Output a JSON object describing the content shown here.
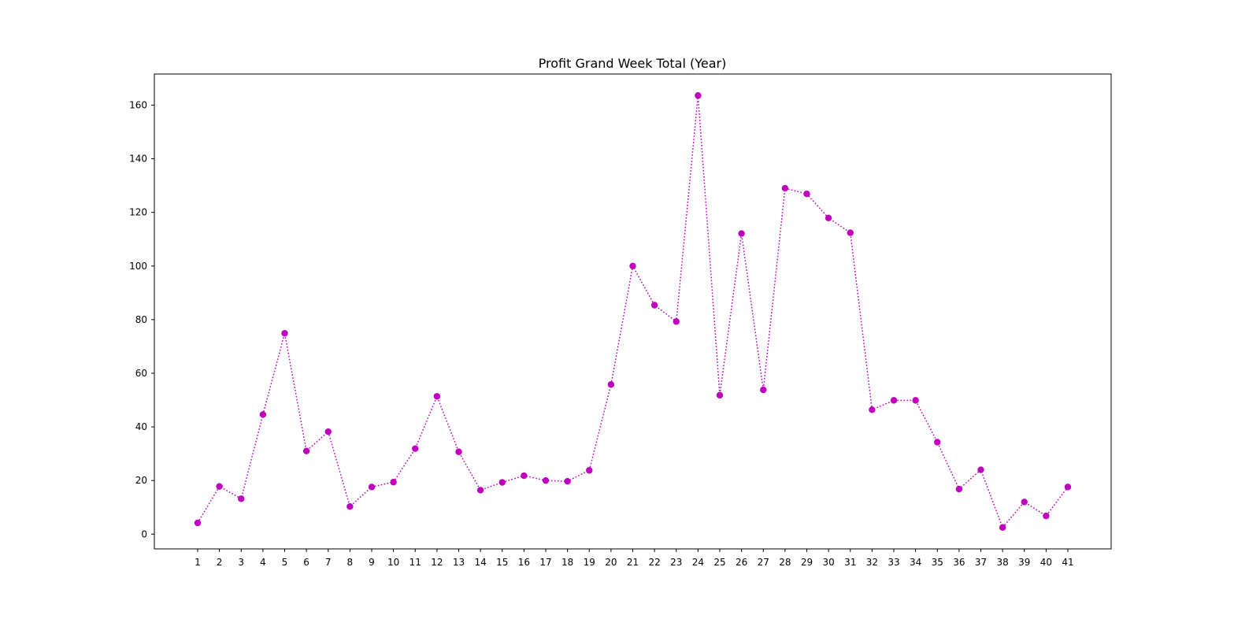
{
  "chart_data": {
    "type": "line",
    "title": "Profit Grand Week Total (Year)",
    "xlabel": "",
    "ylabel": "",
    "x": [
      "1",
      "2",
      "3",
      "4",
      "5",
      "6",
      "7",
      "8",
      "9",
      "10",
      "11",
      "12",
      "13",
      "14",
      "15",
      "16",
      "17",
      "18",
      "19",
      "20",
      "21",
      "22",
      "23",
      "24",
      "25",
      "26",
      "27",
      "28",
      "29",
      "30",
      "31",
      "32",
      "33",
      "34",
      "35",
      "36",
      "37",
      "38",
      "39",
      "40",
      "41"
    ],
    "series": [
      {
        "values": [
          4.2,
          17.8,
          13.2,
          44.6,
          74.9,
          31.0,
          38.2,
          10.3,
          17.6,
          19.4,
          31.9,
          51.4,
          30.7,
          16.4,
          19.3,
          21.8,
          20.0,
          19.7,
          23.8,
          55.8,
          100.0,
          85.4,
          79.3,
          163.6,
          51.8,
          112.1,
          53.8,
          129.0,
          126.9,
          117.9,
          112.4,
          46.4,
          49.9,
          49.9,
          34.3,
          16.8,
          24.0,
          2.5,
          12.0,
          6.8,
          17.6
        ],
        "color": "#bf00bf",
        "line_style": "dotted",
        "marker": "circle"
      }
    ],
    "yticks": [
      0,
      20,
      40,
      60,
      80,
      100,
      120,
      140,
      160
    ],
    "ylim": [
      -5.5,
      171.6
    ],
    "grid": false,
    "legend": "none"
  }
}
